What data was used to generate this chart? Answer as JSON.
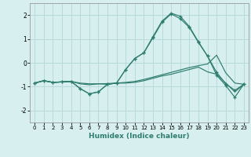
{
  "xlabel": "Humidex (Indice chaleur)",
  "x": [
    0,
    1,
    2,
    3,
    4,
    5,
    6,
    7,
    8,
    9,
    10,
    11,
    12,
    13,
    14,
    15,
    16,
    17,
    18,
    19,
    20,
    21,
    22,
    23
  ],
  "line1": [
    -0.85,
    -0.75,
    -0.82,
    -0.8,
    -0.78,
    -1.08,
    -1.3,
    -1.22,
    -0.9,
    -0.85,
    -0.28,
    0.18,
    0.42,
    1.1,
    1.75,
    2.08,
    1.95,
    1.52,
    0.88,
    0.28,
    -0.4,
    -0.88,
    -1.15,
    -0.9
  ],
  "line2": [
    -0.85,
    -0.75,
    -0.82,
    -0.8,
    -0.78,
    -0.85,
    -0.88,
    -0.88,
    -0.9,
    -0.85,
    -0.82,
    -0.78,
    -0.7,
    -0.6,
    -0.5,
    -0.4,
    -0.3,
    -0.2,
    -0.12,
    -0.05,
    0.32,
    -0.42,
    -0.85,
    -0.9
  ],
  "line3": [
    -0.85,
    -0.75,
    -0.82,
    -0.8,
    -0.78,
    -0.88,
    -0.92,
    -0.88,
    -0.87,
    -0.85,
    -0.85,
    -0.82,
    -0.75,
    -0.65,
    -0.55,
    -0.48,
    -0.38,
    -0.28,
    -0.18,
    -0.38,
    -0.48,
    -0.85,
    -1.22,
    -0.9
  ],
  "line4": [
    -0.85,
    -0.75,
    -0.82,
    -0.8,
    -0.78,
    -1.08,
    -1.3,
    -1.22,
    -0.9,
    -0.85,
    -0.28,
    0.18,
    0.42,
    1.05,
    1.7,
    2.05,
    1.85,
    1.48,
    0.85,
    0.28,
    -0.52,
    -0.95,
    -1.45,
    -0.88
  ],
  "line_color": "#2E7D6E",
  "bg_color": "#d8efef",
  "grid_color": "#b8dada",
  "ylim": [
    -2.5,
    2.5
  ],
  "yticks": [
    -2,
    -1,
    0,
    1,
    2
  ],
  "xlim": [
    -0.5,
    23.5
  ],
  "xticks": [
    0,
    1,
    2,
    3,
    4,
    5,
    6,
    7,
    8,
    9,
    10,
    11,
    12,
    13,
    14,
    15,
    16,
    17,
    18,
    19,
    20,
    21,
    22,
    23
  ]
}
